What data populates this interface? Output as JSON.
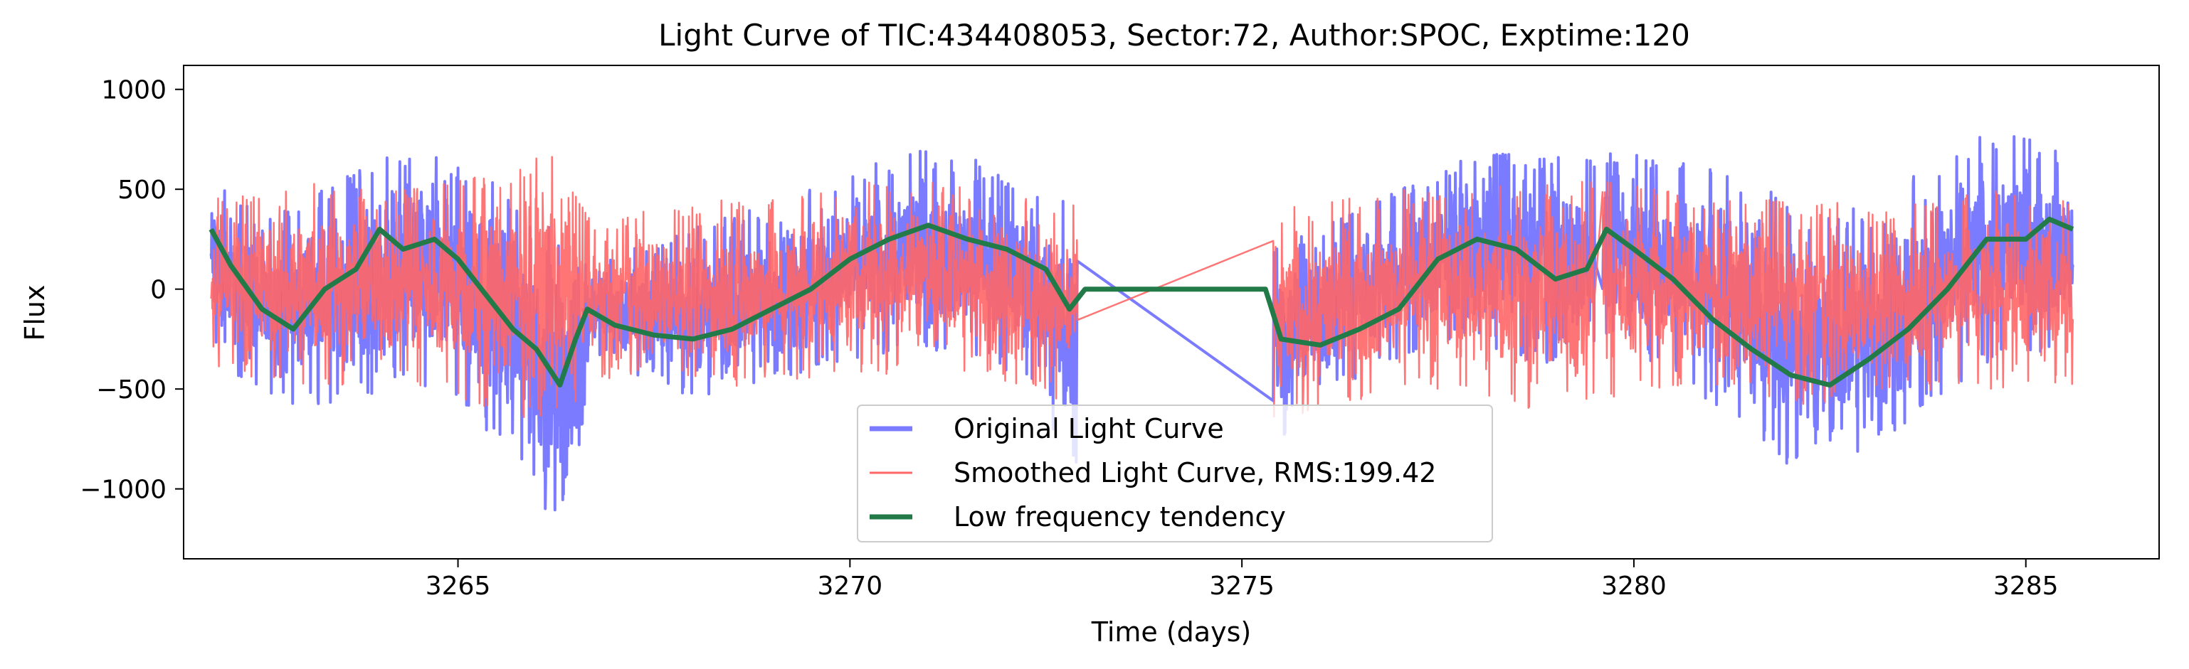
{
  "chart_data": {
    "type": "line",
    "title": "Light Curve of TIC:434408053, Sector:72, Author:SPOC, Exptime:120",
    "xlabel": "Time (days)",
    "ylabel": "Flux",
    "xlim": [
      3261.5,
      3286.7
    ],
    "ylim": [
      -1350,
      1120
    ],
    "xticks": [
      3265,
      3270,
      3275,
      3280,
      3285
    ],
    "yticks": [
      -1000,
      -500,
      0,
      500,
      1000
    ],
    "ytick_labels": [
      "−1000",
      "−500",
      "0",
      "500",
      "1000"
    ],
    "grid": false,
    "legend_position": "bottom-center",
    "segments": [
      [
        3261.85,
        3266.6
      ],
      [
        3266.6,
        3272.9
      ],
      [
        3275.4,
        3279.5
      ],
      [
        3279.6,
        3285.6
      ]
    ],
    "series": [
      {
        "name": "Original Light Curve",
        "color": "#7b7bff",
        "envelope": {
          "x": [
            3261.85,
            3262.5,
            3263.3,
            3264.2,
            3265.0,
            3265.6,
            3266.2,
            3266.45,
            3266.7,
            3267.5,
            3268.3,
            3269.2,
            3270.1,
            3270.9,
            3271.6,
            3272.3,
            3272.8,
            3275.5,
            3276.2,
            3277.0,
            3277.8,
            3278.6,
            3279.2,
            3279.7,
            3280.4,
            3281.1,
            3281.8,
            3282.4,
            3283.1,
            3283.9,
            3284.6,
            3285.6
          ],
          "upper": [
            600,
            350,
            500,
            700,
            650,
            500,
            300,
            100,
            150,
            250,
            350,
            450,
            600,
            700,
            650,
            500,
            450,
            250,
            350,
            500,
            650,
            700,
            650,
            700,
            650,
            600,
            500,
            350,
            450,
            650,
            800,
            700
          ],
          "lower": [
            -300,
            -550,
            -600,
            -500,
            -600,
            -800,
            -1150,
            -1100,
            -350,
            -500,
            -550,
            -450,
            -350,
            -300,
            -350,
            -450,
            -900,
            -750,
            -500,
            -350,
            -250,
            -350,
            -450,
            -250,
            -400,
            -600,
            -850,
            -950,
            -800,
            -550,
            -350,
            -300
          ]
        }
      },
      {
        "name": "Smoothed Light Curve, RMS:199.42",
        "color": "#ff6666",
        "envelope": {
          "x": [
            3261.85,
            3262.5,
            3263.3,
            3264.2,
            3265.0,
            3265.6,
            3266.2,
            3266.45,
            3266.7,
            3267.5,
            3268.3,
            3269.2,
            3270.1,
            3270.9,
            3271.6,
            3272.3,
            3272.8,
            3275.5,
            3276.2,
            3277.0,
            3277.8,
            3278.6,
            3279.2,
            3279.7,
            3280.4,
            3281.1,
            3281.8,
            3282.4,
            3283.1,
            3283.9,
            3284.6,
            3285.6
          ],
          "upper": [
            450,
            500,
            550,
            500,
            550,
            600,
            700,
            500,
            350,
            400,
            450,
            450,
            550,
            550,
            500,
            450,
            450,
            400,
            450,
            500,
            500,
            550,
            550,
            550,
            500,
            450,
            450,
            450,
            400,
            450,
            500,
            450
          ],
          "lower": [
            -400,
            -450,
            -500,
            -450,
            -550,
            -650,
            -700,
            -600,
            -450,
            -450,
            -500,
            -450,
            -450,
            -400,
            -450,
            -500,
            -600,
            -650,
            -600,
            -500,
            -500,
            -600,
            -650,
            -550,
            -500,
            -500,
            -550,
            -600,
            -550,
            -500,
            -500,
            -500
          ]
        }
      },
      {
        "name": "Low frequency tendency",
        "color": "#217a47",
        "x": [
          3261.85,
          3262.1,
          3262.5,
          3262.9,
          3263.3,
          3263.7,
          3264.0,
          3264.3,
          3264.7,
          3265.0,
          3265.3,
          3265.7,
          3266.0,
          3266.3,
          3266.5,
          3266.65,
          3267.0,
          3267.5,
          3268.0,
          3268.5,
          3269.0,
          3269.5,
          3270.0,
          3270.5,
          3271.0,
          3271.5,
          3272.0,
          3272.5,
          3272.8,
          3273.0,
          3275.3,
          3275.5,
          3276.0,
          3276.5,
          3277.0,
          3277.5,
          3278.0,
          3278.5,
          3279.0,
          3279.4,
          3279.65,
          3280.0,
          3280.5,
          3281.0,
          3281.5,
          3282.0,
          3282.5,
          3283.0,
          3283.5,
          3284.0,
          3284.5,
          3285.0,
          3285.3,
          3285.6
        ],
        "y": [
          300,
          120,
          -100,
          -200,
          0,
          100,
          300,
          200,
          250,
          150,
          0,
          -200,
          -300,
          -480,
          -250,
          -100,
          -180,
          -230,
          -250,
          -200,
          -100,
          0,
          150,
          250,
          320,
          250,
          200,
          100,
          -100,
          0,
          0,
          -250,
          -280,
          -200,
          -100,
          150,
          250,
          200,
          50,
          100,
          300,
          200,
          50,
          -150,
          -300,
          -430,
          -480,
          -350,
          -200,
          0,
          250,
          250,
          350,
          300
        ]
      }
    ]
  }
}
